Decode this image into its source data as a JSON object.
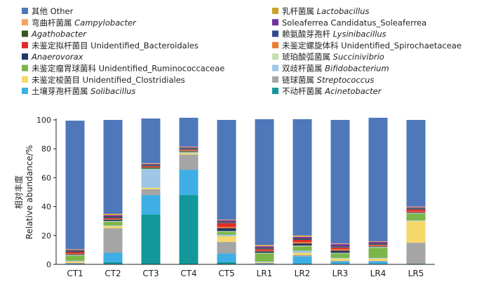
{
  "chart_data": {
    "type": "bar",
    "stacked": true,
    "title": "",
    "ylabel_cn": "相对丰度",
    "ylabel_en": "Relative abundance/%",
    "ylim": [
      0,
      100
    ],
    "yticks": [
      0,
      20,
      40,
      60,
      80,
      100
    ],
    "categories": [
      "CT1",
      "CT2",
      "CT3",
      "CT4",
      "CT5",
      "LR1",
      "LR2",
      "LR3",
      "LR4",
      "LR5"
    ],
    "legend_placement": "top",
    "series": [
      {
        "name": "不动杆菌属",
        "latin": "Acinetobacter",
        "color": "#12989a",
        "values": [
          0.0,
          1.5,
          34.5,
          48.0,
          1.5,
          0.0,
          0.5,
          0.0,
          0.0,
          0.0
        ]
      },
      {
        "name": "土壤芽孢杆菌属",
        "latin": "Solibacillus",
        "color": "#3eaee4",
        "values": [
          0.5,
          6.5,
          13.5,
          17.5,
          6.0,
          0.5,
          5.0,
          2.0,
          2.0,
          0.5
        ]
      },
      {
        "name": "链球菌属",
        "latin": "Streptococcus",
        "color": "#a5a5a5",
        "values": [
          0.5,
          17.0,
          4.0,
          10.5,
          8.0,
          0.5,
          1.0,
          0.5,
          0.5,
          14.5
        ]
      },
      {
        "name": "未鉴定梭菌目",
        "latin": "Unidentified_Clostridiales",
        "color": "#f6d76a",
        "values": [
          1.0,
          1.5,
          1.0,
          1.0,
          4.0,
          0.5,
          1.5,
          1.5,
          1.5,
          15.0
        ]
      },
      {
        "name": "双歧杆菌属",
        "latin": "Bifidobacterium",
        "color": "#9ec6e6",
        "values": [
          0.5,
          0.5,
          13.0,
          0.5,
          1.0,
          0.5,
          1.5,
          0.5,
          0.5,
          0.5
        ]
      },
      {
        "name": "未鉴定瘤胃球菌科",
        "latin": "Unidentified_Ruminococcaceae",
        "color": "#7ab648",
        "values": [
          3.5,
          2.5,
          0.5,
          0.5,
          2.0,
          5.5,
          3.0,
          3.0,
          7.0,
          4.5
        ]
      },
      {
        "name": "琥珀酸弧菌属",
        "latin": "Succinivibrio",
        "color": "#c6dfb0",
        "values": [
          0.5,
          0.5,
          0.0,
          0.0,
          0.5,
          0.5,
          0.5,
          0.5,
          0.5,
          0.5
        ]
      },
      {
        "name": "Anaerovorax",
        "latin": "",
        "color": "#1f3864",
        "values": [
          0.5,
          1.0,
          0.5,
          0.5,
          2.0,
          1.0,
          1.5,
          1.5,
          0.5,
          0.5
        ]
      },
      {
        "name": "未鉴定螺旋体科",
        "latin": "Unidentified_Spirochaetaceae",
        "color": "#ed7d31",
        "values": [
          0.5,
          0.5,
          0.5,
          0.5,
          1.0,
          0.5,
          1.0,
          1.0,
          0.5,
          0.5
        ]
      },
      {
        "name": "未鉴定拟杆菌目",
        "latin": "Unidentified_Bacteroidales",
        "color": "#e02b2b",
        "values": [
          1.0,
          0.5,
          0.5,
          0.5,
          2.5,
          1.0,
          1.5,
          1.0,
          0.5,
          1.5
        ]
      },
      {
        "name": "赖氨酸芽孢杆",
        "latin": "Lysinibacillus",
        "color": "#2e4a8c",
        "values": [
          0.5,
          0.5,
          0.5,
          0.5,
          0.5,
          0.5,
          0.5,
          0.5,
          0.5,
          0.5
        ]
      },
      {
        "name": "Agathobacter",
        "latin": "",
        "color": "#375623",
        "values": [
          0.5,
          0.5,
          0.5,
          0.5,
          0.5,
          0.5,
          0.5,
          0.5,
          0.5,
          0.5
        ]
      },
      {
        "name": "Soleaferrea Candidatus_Soleaferrea",
        "latin": "",
        "color": "#7030a0",
        "values": [
          0.5,
          1.0,
          0.5,
          0.5,
          1.0,
          1.0,
          1.0,
          1.5,
          1.0,
          0.5
        ]
      },
      {
        "name": "弯曲杆菌属",
        "latin": "Campylobacter",
        "color": "#f4a460",
        "values": [
          0.5,
          0.5,
          0.5,
          0.5,
          0.5,
          0.5,
          0.5,
          0.5,
          0.5,
          0.5
        ]
      },
      {
        "name": "乳杆菌属",
        "latin": "Lactobacillus",
        "color": "#c9a227",
        "values": [
          0.0,
          0.5,
          0.0,
          0.0,
          0.0,
          0.5,
          0.5,
          0.0,
          0.0,
          0.0
        ]
      },
      {
        "name": "其他",
        "latin": "Other",
        "color": "#4f78bb",
        "values": [
          89.0,
          65.0,
          31.0,
          20.0,
          69.0,
          87.0,
          80.5,
          85.5,
          85.5,
          60.0
        ]
      }
    ]
  },
  "legend": {
    "left": [
      {
        "cn": "其他",
        "latin": "Other",
        "italic": false,
        "color": "#4f78bb"
      },
      {
        "cn": "弯曲杆菌属",
        "latin": "Campylobacter",
        "italic": true,
        "color": "#f4a460"
      },
      {
        "cn": "",
        "latin": "Agathobacter",
        "italic": true,
        "color": "#375623"
      },
      {
        "cn": "未鉴定拟杆菌目",
        "latin": "Unidentified_Bacteroidales",
        "italic": false,
        "color": "#e02b2b"
      },
      {
        "cn": "",
        "latin": "Anaerovorax",
        "italic": true,
        "color": "#1f3864"
      },
      {
        "cn": "未鉴定瘤胃球菌科",
        "latin": "Unidentified_Ruminococcaceae",
        "italic": false,
        "color": "#7ab648"
      },
      {
        "cn": "未鉴定梭菌目",
        "latin": "Unidentified_Clostridiales",
        "italic": false,
        "color": "#f6d76a"
      },
      {
        "cn": "土壤芽孢杆菌属",
        "latin": "Solibacillus",
        "italic": true,
        "color": "#3eaee4"
      }
    ],
    "right": [
      {
        "cn": "乳杆菌属",
        "latin": "Lactobacillus",
        "italic": true,
        "color": "#c9a227"
      },
      {
        "cn": "",
        "latin": "Soleaferrea Candidatus_Soleaferrea",
        "italic": false,
        "color": "#7030a0"
      },
      {
        "cn": "赖氨酸芽孢杆",
        "latin": "Lysinibacillus",
        "italic": true,
        "color": "#2e4a8c"
      },
      {
        "cn": "未鉴定螺旋体科",
        "latin": "Unidentified_Spirochaetaceae",
        "italic": false,
        "color": "#ed7d31"
      },
      {
        "cn": "琥珀酸弧菌属",
        "latin": "Succinivibrio",
        "italic": true,
        "color": "#c6dfb0"
      },
      {
        "cn": "双歧杆菌属",
        "latin": "Bifidobacterium",
        "italic": true,
        "color": "#9ec6e6"
      },
      {
        "cn": "链球菌属",
        "latin": "Streptococcus",
        "italic": true,
        "color": "#a5a5a5"
      },
      {
        "cn": "不动杆菌属",
        "latin": "Acinetobacter",
        "italic": true,
        "color": "#12989a"
      }
    ]
  }
}
